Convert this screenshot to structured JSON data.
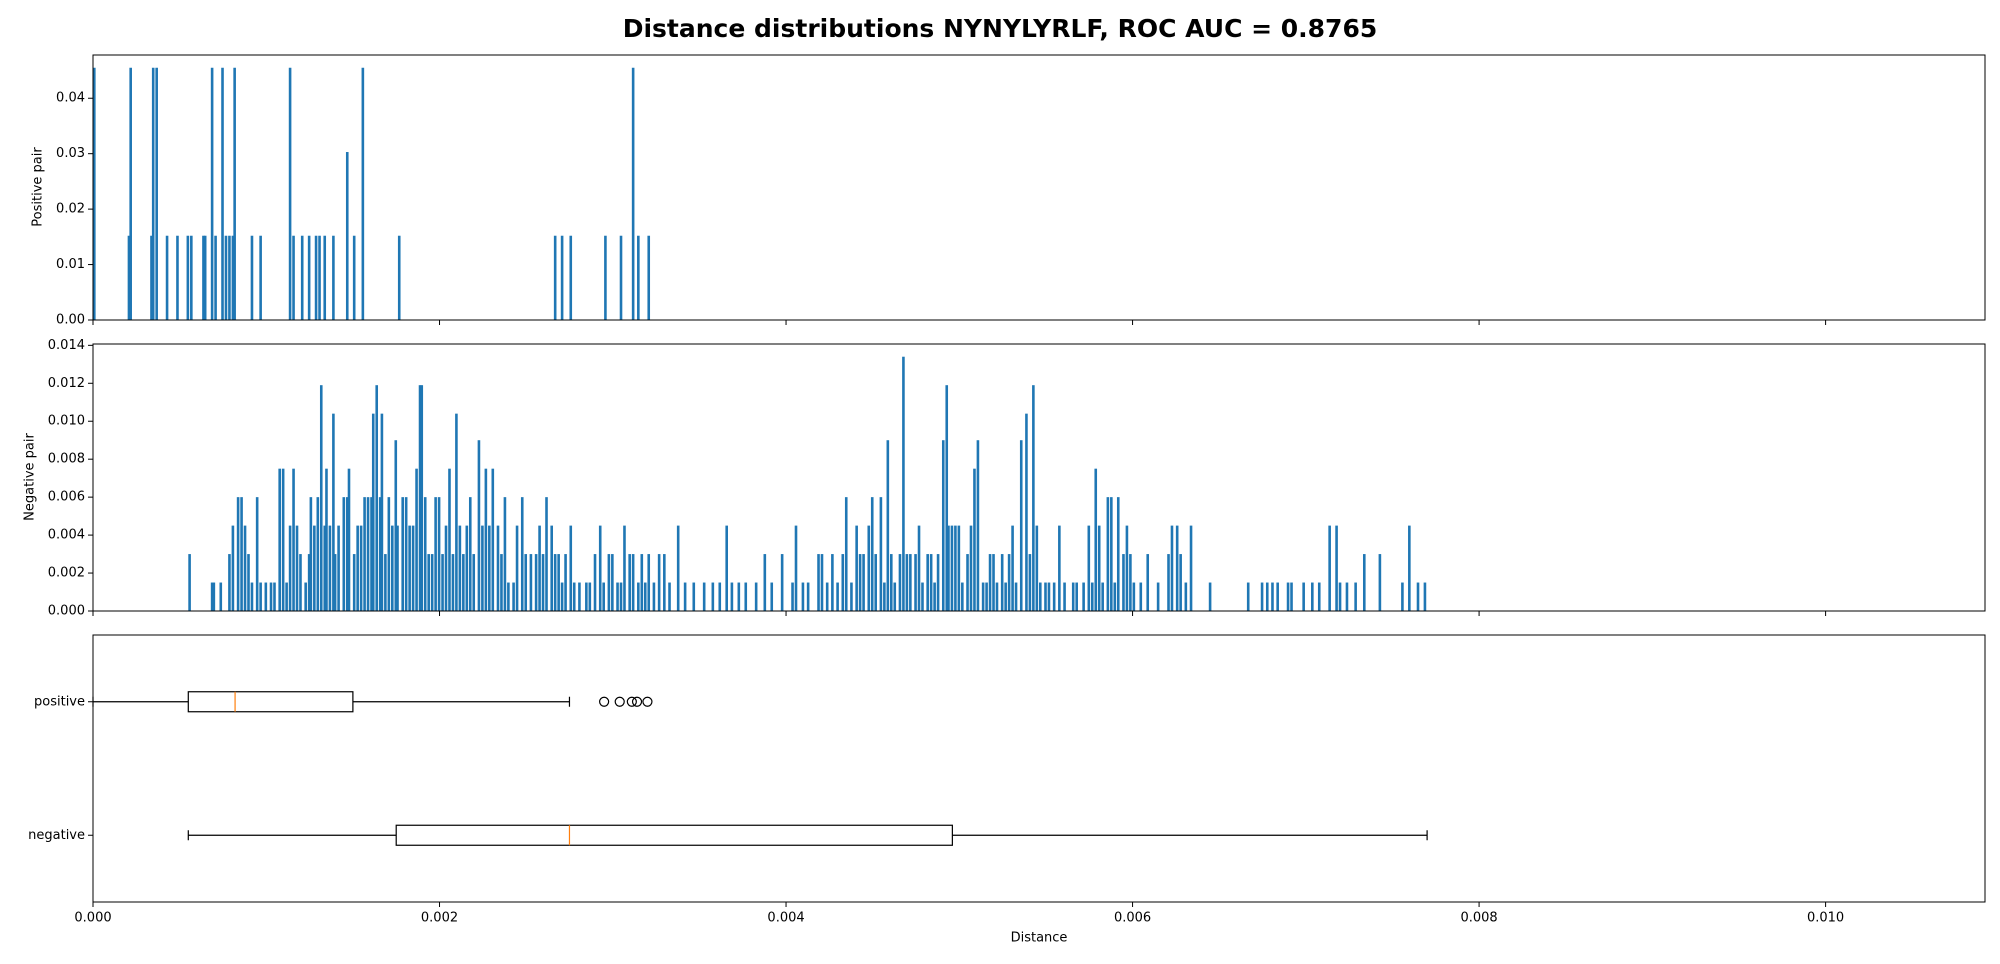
{
  "chart_data": [
    {
      "type": "bar",
      "title": "Distance distributions NYNYLYRLF, ROC AUC = 0.8765",
      "ylabel": "Positive pair",
      "color": "#1f77b4",
      "x": [
        0.0,
        0.0002,
        0.00021,
        0.00033,
        0.00034,
        0.00036,
        0.00042,
        0.00048,
        0.00054,
        0.00056,
        0.00063,
        0.00064,
        0.00068,
        0.0007,
        0.00074,
        0.00076,
        0.00078,
        0.0008,
        0.00081,
        0.00091,
        0.00096,
        0.00113,
        0.00115,
        0.0012,
        0.00124,
        0.00128,
        0.0013,
        0.00133,
        0.00138,
        0.00146,
        0.0015,
        0.00155,
        0.00176,
        0.00266,
        0.0027,
        0.00275,
        0.00295,
        0.00304,
        0.00311,
        0.00314,
        0.0032
      ],
      "values": [
        0.0455,
        0.0152,
        0.0455,
        0.0152,
        0.0455,
        0.0455,
        0.0152,
        0.0152,
        0.0152,
        0.0152,
        0.0152,
        0.0152,
        0.0455,
        0.0152,
        0.0455,
        0.0152,
        0.0152,
        0.0152,
        0.0455,
        0.0152,
        0.0152,
        0.0455,
        0.0152,
        0.0152,
        0.0152,
        0.0152,
        0.0152,
        0.0152,
        0.0152,
        0.0303,
        0.0152,
        0.0455,
        0.0152,
        0.0152,
        0.0152,
        0.0152,
        0.0152,
        0.0152,
        0.0455,
        0.0152,
        0.0152
      ],
      "xlim": [
        0,
        0.01092
      ],
      "xticks": [
        0,
        0.002,
        0.004,
        0.006,
        0.008,
        0.01
      ],
      "ylim": [
        0,
        0.0478
      ],
      "yticks": [
        {
          "value": 0,
          "label": "0.00"
        },
        {
          "value": 0.01,
          "label": "0.01"
        },
        {
          "value": 0.02,
          "label": "0.02"
        },
        {
          "value": 0.03,
          "label": "0.03"
        },
        {
          "value": 0.04,
          "label": "0.04"
        }
      ]
    },
    {
      "type": "bar",
      "ylabel": "Negative pair",
      "color": "#1f77b4",
      "x": [
        0.00055,
        0.00068,
        0.00069,
        0.00073,
        0.00078,
        0.0008,
        0.00083,
        0.00085,
        0.00087,
        0.00089,
        0.00091,
        0.00094,
        0.00096,
        0.00099,
        0.00102,
        0.00104,
        0.00107,
        0.00109,
        0.00111,
        0.00113,
        0.00115,
        0.00117,
        0.00119,
        0.00122,
        0.00124,
        0.00125,
        0.00127,
        0.00129,
        0.00131,
        0.00133,
        0.00134,
        0.00136,
        0.00138,
        0.00139,
        0.00141,
        0.00144,
        0.00146,
        0.00147,
        0.0015,
        0.00152,
        0.00154,
        0.00156,
        0.00158,
        0.0016,
        0.00161,
        0.00163,
        0.00165,
        0.00166,
        0.00168,
        0.0017,
        0.00172,
        0.00174,
        0.00175,
        0.00178,
        0.0018,
        0.00182,
        0.00184,
        0.00186,
        0.00188,
        0.00189,
        0.00191,
        0.00193,
        0.00195,
        0.00197,
        0.00199,
        0.00201,
        0.00203,
        0.00205,
        0.00207,
        0.00209,
        0.00211,
        0.00213,
        0.00215,
        0.00217,
        0.00219,
        0.00222,
        0.00224,
        0.00226,
        0.00228,
        0.0023,
        0.00233,
        0.00235,
        0.00237,
        0.00239,
        0.00242,
        0.00244,
        0.00247,
        0.00249,
        0.00252,
        0.00255,
        0.00257,
        0.00259,
        0.00261,
        0.00264,
        0.00266,
        0.00268,
        0.0027,
        0.00272,
        0.00275,
        0.00277,
        0.0028,
        0.00284,
        0.00286,
        0.00289,
        0.00292,
        0.00294,
        0.00297,
        0.00299,
        0.00302,
        0.00304,
        0.00306,
        0.00309,
        0.00311,
        0.00314,
        0.00316,
        0.00318,
        0.0032,
        0.00323,
        0.00326,
        0.00329,
        0.00332,
        0.00337,
        0.00341,
        0.00346,
        0.00352,
        0.00357,
        0.00361,
        0.00365,
        0.00368,
        0.00372,
        0.00376,
        0.00382,
        0.00387,
        0.00391,
        0.00397,
        0.00403,
        0.00405,
        0.00409,
        0.00412,
        0.00418,
        0.0042,
        0.00423,
        0.00426,
        0.00429,
        0.00432,
        0.00434,
        0.00437,
        0.0044,
        0.00442,
        0.00444,
        0.00447,
        0.00449,
        0.00451,
        0.00454,
        0.00456,
        0.00458,
        0.0046,
        0.00462,
        0.00465,
        0.00467,
        0.00469,
        0.00471,
        0.00474,
        0.00476,
        0.00478,
        0.00481,
        0.00483,
        0.00485,
        0.00487,
        0.0049,
        0.00492,
        0.00493,
        0.00495,
        0.00497,
        0.00499,
        0.00501,
        0.00504,
        0.00506,
        0.00508,
        0.0051,
        0.00513,
        0.00515,
        0.00517,
        0.00519,
        0.00521,
        0.00524,
        0.00526,
        0.00528,
        0.0053,
        0.00532,
        0.00535,
        0.00538,
        0.0054,
        0.00542,
        0.00544,
        0.00546,
        0.00549,
        0.00551,
        0.00554,
        0.00557,
        0.0056,
        0.00565,
        0.00567,
        0.00571,
        0.00574,
        0.00576,
        0.00578,
        0.0058,
        0.00582,
        0.00585,
        0.00587,
        0.00589,
        0.00591,
        0.00594,
        0.00596,
        0.00598,
        0.006,
        0.00604,
        0.00608,
        0.00614,
        0.0062,
        0.00622,
        0.00625,
        0.00627,
        0.0063,
        0.00633,
        0.00644,
        0.00666,
        0.00674,
        0.00677,
        0.0068,
        0.00683,
        0.00689,
        0.00691,
        0.00698,
        0.00703,
        0.00707,
        0.00713,
        0.00717,
        0.00719,
        0.00723,
        0.00728,
        0.00733,
        0.00742,
        0.00755,
        0.00759,
        0.00764,
        0.00768
      ],
      "values": [
        0.003,
        0.0015,
        0.0015,
        0.0015,
        0.003,
        0.0045,
        0.006,
        0.006,
        0.0045,
        0.003,
        0.0015,
        0.006,
        0.0015,
        0.0015,
        0.0015,
        0.0015,
        0.0075,
        0.0075,
        0.0015,
        0.0045,
        0.0075,
        0.0045,
        0.003,
        0.0015,
        0.003,
        0.006,
        0.0045,
        0.006,
        0.0119,
        0.0045,
        0.0075,
        0.0045,
        0.0104,
        0.003,
        0.0045,
        0.006,
        0.006,
        0.0075,
        0.003,
        0.0045,
        0.0045,
        0.006,
        0.006,
        0.006,
        0.0104,
        0.0119,
        0.006,
        0.0104,
        0.003,
        0.006,
        0.0045,
        0.009,
        0.0045,
        0.006,
        0.006,
        0.0045,
        0.0045,
        0.0075,
        0.0119,
        0.0119,
        0.006,
        0.003,
        0.003,
        0.006,
        0.006,
        0.003,
        0.0045,
        0.0075,
        0.003,
        0.0104,
        0.0045,
        0.003,
        0.0045,
        0.006,
        0.003,
        0.009,
        0.0045,
        0.0075,
        0.0045,
        0.0075,
        0.0045,
        0.003,
        0.006,
        0.0015,
        0.0015,
        0.0045,
        0.006,
        0.003,
        0.003,
        0.003,
        0.0045,
        0.003,
        0.006,
        0.0045,
        0.003,
        0.003,
        0.0015,
        0.003,
        0.0045,
        0.0015,
        0.0015,
        0.0015,
        0.0015,
        0.003,
        0.0045,
        0.0015,
        0.003,
        0.003,
        0.0015,
        0.0015,
        0.0045,
        0.003,
        0.003,
        0.0015,
        0.003,
        0.0015,
        0.003,
        0.0015,
        0.003,
        0.003,
        0.0015,
        0.0045,
        0.0015,
        0.0015,
        0.0015,
        0.0015,
        0.0015,
        0.0045,
        0.0015,
        0.0015,
        0.0015,
        0.0015,
        0.003,
        0.0015,
        0.003,
        0.0015,
        0.0045,
        0.0015,
        0.0015,
        0.003,
        0.003,
        0.0015,
        0.003,
        0.0015,
        0.003,
        0.006,
        0.0015,
        0.0045,
        0.003,
        0.003,
        0.0045,
        0.006,
        0.003,
        0.006,
        0.0015,
        0.009,
        0.003,
        0.0015,
        0.003,
        0.0134,
        0.003,
        0.003,
        0.003,
        0.0045,
        0.0015,
        0.003,
        0.003,
        0.0015,
        0.003,
        0.009,
        0.0119,
        0.0045,
        0.0045,
        0.0045,
        0.0045,
        0.0015,
        0.003,
        0.0045,
        0.0075,
        0.009,
        0.0015,
        0.0015,
        0.003,
        0.003,
        0.0015,
        0.003,
        0.0015,
        0.003,
        0.0045,
        0.0015,
        0.009,
        0.0104,
        0.003,
        0.0119,
        0.0045,
        0.0015,
        0.0015,
        0.0015,
        0.0015,
        0.0045,
        0.0015,
        0.0015,
        0.0015,
        0.0015,
        0.0045,
        0.0015,
        0.0075,
        0.0045,
        0.0015,
        0.006,
        0.006,
        0.0015,
        0.006,
        0.003,
        0.0045,
        0.003,
        0.0015,
        0.0015,
        0.003,
        0.0015,
        0.003,
        0.0045,
        0.0045,
        0.003,
        0.0015,
        0.0045,
        0.0015,
        0.0015,
        0.0015,
        0.0015,
        0.0015,
        0.0015,
        0.0015,
        0.0015,
        0.0015,
        0.0015,
        0.0015,
        0.0045,
        0.0045,
        0.0015,
        0.0015,
        0.0015,
        0.003,
        0.003,
        0.0015,
        0.0045,
        0.0015,
        0.0015
      ],
      "xlim": [
        0,
        0.01092
      ],
      "xticks": [
        0,
        0.002,
        0.004,
        0.006,
        0.008,
        0.01
      ],
      "ylim": [
        0,
        0.01407
      ],
      "yticks": [
        {
          "value": 0,
          "label": "0.000"
        },
        {
          "value": 0.002,
          "label": "0.002"
        },
        {
          "value": 0.004,
          "label": "0.004"
        },
        {
          "value": 0.006,
          "label": "0.006"
        },
        {
          "value": 0.008,
          "label": "0.008"
        },
        {
          "value": 0.01,
          "label": "0.010"
        },
        {
          "value": 0.012,
          "label": "0.012"
        },
        {
          "value": 0.014,
          "label": "0.014"
        }
      ]
    },
    {
      "type": "box",
      "xlabel": "Distance",
      "color": "#000000",
      "median_color": "#ff7f0e",
      "categories": [
        "positive",
        "negative"
      ],
      "boxes": [
        {
          "whislo": 0,
          "q1": 0.00055,
          "med": 0.00082,
          "q3": 0.0015,
          "whishi": 0.00275,
          "fliers": [
            0.00295,
            0.00304,
            0.00311,
            0.00314,
            0.0032
          ]
        },
        {
          "whislo": 0.00055,
          "q1": 0.00175,
          "med": 0.00275,
          "q3": 0.00496,
          "whishi": 0.0077,
          "fliers": []
        }
      ],
      "xlim": [
        0,
        0.01092
      ],
      "xticks": [
        {
          "value": 0,
          "label": "0.000"
        },
        {
          "value": 0.002,
          "label": "0.002"
        },
        {
          "value": 0.004,
          "label": "0.004"
        },
        {
          "value": 0.006,
          "label": "0.006"
        },
        {
          "value": 0.008,
          "label": "0.008"
        },
        {
          "value": 0.01,
          "label": "0.010"
        }
      ]
    }
  ]
}
